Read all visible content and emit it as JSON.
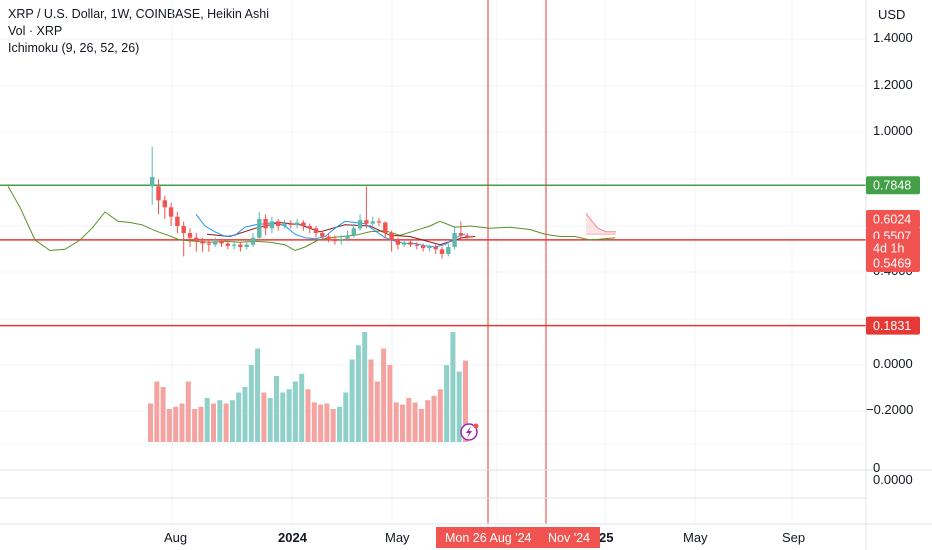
{
  "legend": {
    "symbol_line": "XRP / U.S. Dollar, 1W, COINBASE, Heikin Ashi",
    "volume_line": "Vol · XRP",
    "indicator_line": "Ichimoku (9, 26, 52, 26)"
  },
  "currency": "USD",
  "colors": {
    "up": "#5fb8ad",
    "down": "#f05350",
    "vol_up": "#8fd0c8",
    "vol_down": "#f5a3a1",
    "green_line": "#43a047",
    "red_line": "#e53935",
    "tenkan": "#2196f3",
    "kijun": "#8b1a1a",
    "chikou": "#5b8f22",
    "cursor": "#e53935"
  },
  "chart_data": {
    "type": "candlestick",
    "y_ticks": [
      "1.4000",
      "1.2000",
      "1.0000",
      "0.4000",
      "0.0000",
      "−0.2000"
    ],
    "x_ticks": [
      "Aug",
      "2024",
      "May",
      "25",
      "May",
      "Sep"
    ],
    "volume_axis_label": "0",
    "lower_axis_label": "0.0000",
    "horizontal_levels": [
      {
        "label": "0.7848",
        "value": 0.7848,
        "color": "#43a047"
      },
      {
        "label": "0.5507",
        "value": 0.5507,
        "color": "#e53935"
      },
      {
        "label": "0.1831",
        "value": 0.1831,
        "color": "#e53935"
      }
    ],
    "price_tags": [
      {
        "label": "0.6024",
        "value": 0.6024,
        "color": "#f05350"
      },
      {
        "label": "0.5507",
        "value": 0.5507,
        "color": "#f05350"
      },
      {
        "label": "4d 1h",
        "value": 0.53,
        "color": "#f05350"
      },
      {
        "label": "0.5469",
        "value": 0.5469,
        "color": "#f05350"
      }
    ],
    "crosshair_labels": [
      "Mon 26 Aug '24",
      "Nov '24"
    ],
    "candles": [
      [
        0.78,
        0.82,
        0.95,
        0.7
      ],
      [
        0.78,
        0.72,
        0.81,
        0.66
      ],
      [
        0.72,
        0.69,
        0.74,
        0.64
      ],
      [
        0.69,
        0.65,
        0.71,
        0.61
      ],
      [
        0.65,
        0.61,
        0.67,
        0.58
      ],
      [
        0.61,
        0.58,
        0.63,
        0.48
      ],
      [
        0.58,
        0.56,
        0.6,
        0.52
      ],
      [
        0.56,
        0.545,
        0.58,
        0.5
      ],
      [
        0.545,
        0.535,
        0.56,
        0.5
      ],
      [
        0.535,
        0.53,
        0.55,
        0.5
      ],
      [
        0.53,
        0.545,
        0.56,
        0.52
      ],
      [
        0.545,
        0.535,
        0.555,
        0.52
      ],
      [
        0.535,
        0.525,
        0.55,
        0.51
      ],
      [
        0.525,
        0.53,
        0.545,
        0.51
      ],
      [
        0.53,
        0.52,
        0.54,
        0.5
      ],
      [
        0.52,
        0.53,
        0.545,
        0.51
      ],
      [
        0.53,
        0.56,
        0.58,
        0.52
      ],
      [
        0.56,
        0.64,
        0.67,
        0.55
      ],
      [
        0.64,
        0.6,
        0.66,
        0.57
      ],
      [
        0.6,
        0.63,
        0.65,
        0.58
      ],
      [
        0.63,
        0.61,
        0.64,
        0.59
      ],
      [
        0.61,
        0.62,
        0.635,
        0.6
      ],
      [
        0.62,
        0.615,
        0.635,
        0.6
      ],
      [
        0.615,
        0.625,
        0.64,
        0.6
      ],
      [
        0.625,
        0.61,
        0.635,
        0.59
      ],
      [
        0.61,
        0.6,
        0.62,
        0.58
      ],
      [
        0.6,
        0.58,
        0.61,
        0.56
      ],
      [
        0.58,
        0.565,
        0.59,
        0.55
      ],
      [
        0.565,
        0.555,
        0.58,
        0.54
      ],
      [
        0.555,
        0.545,
        0.57,
        0.53
      ],
      [
        0.545,
        0.555,
        0.57,
        0.53
      ],
      [
        0.555,
        0.57,
        0.59,
        0.55
      ],
      [
        0.57,
        0.6,
        0.62,
        0.56
      ],
      [
        0.6,
        0.635,
        0.66,
        0.59
      ],
      [
        0.635,
        0.62,
        0.78,
        0.6
      ],
      [
        0.62,
        0.63,
        0.65,
        0.61
      ],
      [
        0.63,
        0.625,
        0.645,
        0.61
      ],
      [
        0.625,
        0.58,
        0.63,
        0.56
      ],
      [
        0.58,
        0.55,
        0.59,
        0.5
      ],
      [
        0.55,
        0.53,
        0.56,
        0.51
      ],
      [
        0.53,
        0.54,
        0.55,
        0.52
      ],
      [
        0.54,
        0.53,
        0.55,
        0.52
      ],
      [
        0.53,
        0.525,
        0.54,
        0.51
      ],
      [
        0.525,
        0.515,
        0.535,
        0.5
      ],
      [
        0.515,
        0.52,
        0.53,
        0.5
      ],
      [
        0.52,
        0.51,
        0.53,
        0.49
      ],
      [
        0.51,
        0.49,
        0.52,
        0.47
      ],
      [
        0.49,
        0.52,
        0.54,
        0.48
      ],
      [
        0.52,
        0.58,
        0.61,
        0.51
      ],
      [
        0.58,
        0.57,
        0.63,
        0.55
      ],
      [
        0.57,
        0.56,
        0.58,
        0.55
      ]
    ],
    "volume": [
      [
        0.35,
        "down"
      ],
      [
        0.55,
        "down"
      ],
      [
        0.5,
        "down"
      ],
      [
        0.3,
        "down"
      ],
      [
        0.32,
        "down"
      ],
      [
        0.35,
        "down"
      ],
      [
        0.55,
        "down"
      ],
      [
        0.3,
        "down"
      ],
      [
        0.32,
        "down"
      ],
      [
        0.4,
        "up"
      ],
      [
        0.35,
        "down"
      ],
      [
        0.38,
        "up"
      ],
      [
        0.35,
        "down"
      ],
      [
        0.38,
        "up"
      ],
      [
        0.45,
        "up"
      ],
      [
        0.5,
        "up"
      ],
      [
        0.7,
        "up"
      ],
      [
        0.85,
        "up"
      ],
      [
        0.45,
        "down"
      ],
      [
        0.4,
        "up"
      ],
      [
        0.6,
        "up"
      ],
      [
        0.45,
        "up"
      ],
      [
        0.48,
        "up"
      ],
      [
        0.55,
        "up"
      ],
      [
        0.62,
        "up"
      ],
      [
        0.48,
        "down"
      ],
      [
        0.36,
        "down"
      ],
      [
        0.34,
        "down"
      ],
      [
        0.35,
        "down"
      ],
      [
        0.3,
        "down"
      ],
      [
        0.32,
        "up"
      ],
      [
        0.45,
        "up"
      ],
      [
        0.75,
        "up"
      ],
      [
        0.88,
        "up"
      ],
      [
        1.0,
        "up"
      ],
      [
        0.75,
        "down"
      ],
      [
        0.55,
        "down"
      ],
      [
        0.85,
        "down"
      ],
      [
        0.7,
        "down"
      ],
      [
        0.36,
        "down"
      ],
      [
        0.34,
        "down"
      ],
      [
        0.4,
        "down"
      ],
      [
        0.36,
        "down"
      ],
      [
        0.3,
        "down"
      ],
      [
        0.38,
        "down"
      ],
      [
        0.42,
        "down"
      ],
      [
        0.48,
        "down"
      ],
      [
        0.7,
        "up"
      ],
      [
        1.0,
        "up"
      ],
      [
        0.64,
        "up"
      ],
      [
        0.74,
        "down"
      ]
    ],
    "tenkan": [
      [
        196,
        0.66
      ],
      [
        205,
        0.61
      ],
      [
        215,
        0.585
      ],
      [
        225,
        0.565
      ],
      [
        235,
        0.57
      ],
      [
        245,
        0.605
      ],
      [
        255,
        0.615
      ],
      [
        265,
        0.62
      ],
      [
        275,
        0.625
      ],
      [
        285,
        0.61
      ],
      [
        295,
        0.575
      ],
      [
        305,
        0.56
      ],
      [
        315,
        0.555
      ],
      [
        325,
        0.565
      ],
      [
        335,
        0.6
      ],
      [
        345,
        0.63
      ],
      [
        355,
        0.625
      ],
      [
        365,
        0.62
      ],
      [
        375,
        0.59
      ],
      [
        385,
        0.56
      ],
      [
        395,
        0.545
      ],
      [
        405,
        0.535
      ],
      [
        415,
        0.535
      ],
      [
        425,
        0.525
      ],
      [
        435,
        0.52
      ],
      [
        445,
        0.53
      ],
      [
        455,
        0.56
      ],
      [
        465,
        0.575
      ]
    ],
    "kijun": [
      [
        207,
        0.575
      ],
      [
        230,
        0.565
      ],
      [
        255,
        0.6
      ],
      [
        280,
        0.625
      ],
      [
        300,
        0.615
      ],
      [
        320,
        0.585
      ],
      [
        345,
        0.615
      ],
      [
        370,
        0.61
      ],
      [
        390,
        0.57
      ],
      [
        410,
        0.565
      ],
      [
        440,
        0.53
      ],
      [
        462,
        0.56
      ],
      [
        475,
        0.565
      ]
    ],
    "chikou": [
      [
        8,
        0.78
      ],
      [
        20,
        0.69
      ],
      [
        35,
        0.55
      ],
      [
        50,
        0.505
      ],
      [
        65,
        0.51
      ],
      [
        80,
        0.55
      ],
      [
        92,
        0.6
      ],
      [
        105,
        0.67
      ],
      [
        118,
        0.63
      ],
      [
        130,
        0.625
      ],
      [
        142,
        0.615
      ],
      [
        155,
        0.59
      ],
      [
        168,
        0.57
      ],
      [
        180,
        0.55
      ],
      [
        195,
        0.545
      ],
      [
        210,
        0.54
      ],
      [
        225,
        0.545
      ],
      [
        240,
        0.54
      ],
      [
        255,
        0.545
      ],
      [
        270,
        0.54
      ],
      [
        285,
        0.53
      ],
      [
        295,
        0.505
      ],
      [
        305,
        0.52
      ],
      [
        318,
        0.55
      ],
      [
        330,
        0.56
      ],
      [
        342,
        0.565
      ],
      [
        355,
        0.57
      ],
      [
        370,
        0.585
      ],
      [
        385,
        0.59
      ],
      [
        400,
        0.57
      ],
      [
        415,
        0.59
      ],
      [
        430,
        0.61
      ],
      [
        440,
        0.63
      ],
      [
        455,
        0.605
      ],
      [
        470,
        0.61
      ],
      [
        490,
        0.6
      ],
      [
        510,
        0.605
      ],
      [
        530,
        0.595
      ],
      [
        545,
        0.575
      ],
      [
        560,
        0.565
      ],
      [
        575,
        0.565
      ],
      [
        590,
        0.55
      ],
      [
        605,
        0.555
      ],
      [
        615,
        0.56
      ]
    ],
    "cloud_top": [
      [
        586,
        0.665
      ],
      [
        592,
        0.63
      ],
      [
        598,
        0.6
      ],
      [
        606,
        0.585
      ],
      [
        616,
        0.585
      ]
    ],
    "cloud_bottom": [
      [
        586,
        0.575
      ],
      [
        600,
        0.575
      ],
      [
        616,
        0.575
      ]
    ]
  }
}
